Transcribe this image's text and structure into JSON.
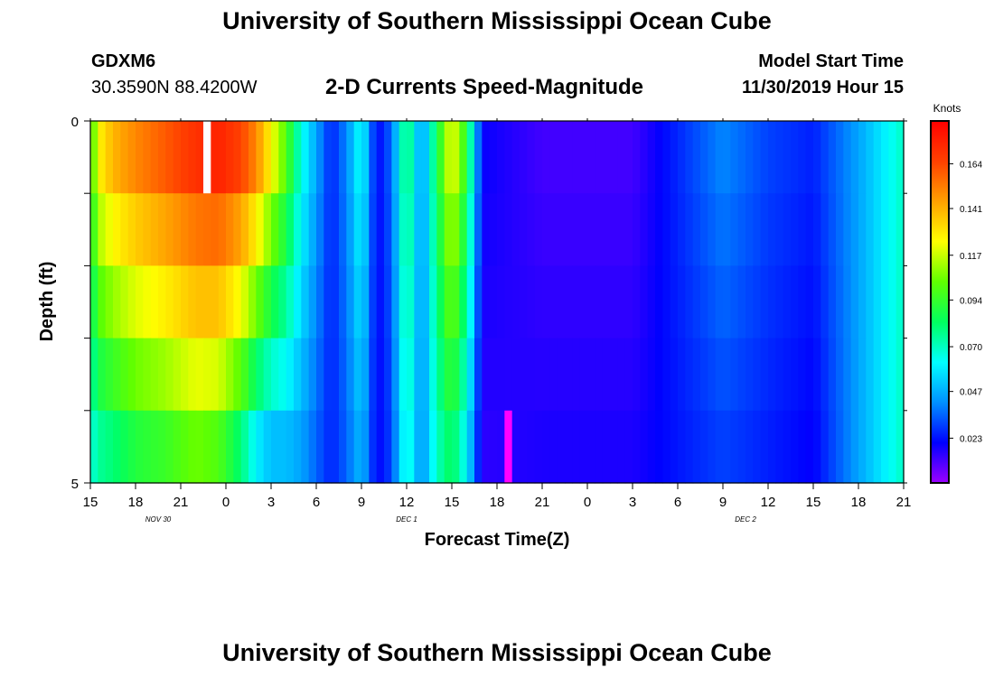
{
  "header": {
    "title": "University of Southern Mississippi Ocean Cube",
    "station_id": "GDXM6",
    "coordinates": "30.3590N 88.4200W",
    "subtitle": "2-D Currents Speed-Magnitude",
    "model_start_label": "Model Start Time",
    "model_start_value": "11/30/2019 Hour 15"
  },
  "footer": {
    "title": "University of Southern Mississippi Ocean Cube"
  },
  "chart_data": {
    "type": "heatmap",
    "title": "2-D Currents Speed-Magnitude",
    "xlabel": "Forecast Time(Z)",
    "ylabel": "Depth (ft)",
    "x_range_hours": [
      0,
      54
    ],
    "x_tick_labels": [
      "15",
      "18",
      "21",
      "0",
      "3",
      "6",
      "9",
      "12",
      "15",
      "18",
      "21",
      "0",
      "3",
      "6",
      "9",
      "12",
      "15",
      "18",
      "21"
    ],
    "date_labels": [
      {
        "text": "NOV 30",
        "hour": 4.5
      },
      {
        "text": "DEC 1",
        "hour": 21
      },
      {
        "text": "DEC 2",
        "hour": 43.5
      }
    ],
    "y_range": [
      0,
      5
    ],
    "y_tick_labels": [
      "0",
      "5"
    ],
    "depth_layers": 5,
    "colorbar": {
      "unit": "Knots",
      "min": 0.0,
      "max": 0.186,
      "tick_values": [
        "0.164",
        "0.141",
        "0.117",
        "0.094",
        "0.070",
        "0.047",
        "0.023"
      ],
      "colors": [
        "#9b00ff",
        "#0000ff",
        "#0090ff",
        "#00ffff",
        "#00ff60",
        "#60ff00",
        "#ffff00",
        "#ffa000",
        "#ff4000",
        "#ff0000"
      ]
    },
    "time_profile": [
      {
        "hour": 0,
        "speed": 0.09,
        "depth_drop": 0.025
      },
      {
        "hour": 0.5,
        "speed": 0.125,
        "depth_drop": 0.05
      },
      {
        "hour": 1.5,
        "speed": 0.14,
        "depth_drop": 0.06
      },
      {
        "hour": 3,
        "speed": 0.15,
        "depth_drop": 0.06
      },
      {
        "hour": 5,
        "speed": 0.16,
        "depth_drop": 0.065
      },
      {
        "hour": 7,
        "speed": 0.17,
        "depth_drop": 0.065
      },
      {
        "hour": 8.5,
        "speed": 0.175,
        "depth_drop": 0.075
      },
      {
        "hour": 10,
        "speed": 0.165,
        "depth_drop": 0.085
      },
      {
        "hour": 11,
        "speed": 0.15,
        "depth_drop": 0.09
      },
      {
        "hour": 12,
        "speed": 0.125,
        "depth_drop": 0.075
      },
      {
        "hour": 13,
        "speed": 0.1,
        "depth_drop": 0.05
      },
      {
        "hour": 14,
        "speed": 0.065,
        "depth_drop": 0.02
      },
      {
        "hour": 15,
        "speed": 0.045,
        "depth_drop": 0.01
      },
      {
        "hour": 16,
        "speed": 0.025,
        "depth_drop": 0.0
      },
      {
        "hour": 17,
        "speed": 0.04,
        "depth_drop": 0.005
      },
      {
        "hour": 18,
        "speed": 0.065,
        "depth_drop": 0.015
      },
      {
        "hour": 19,
        "speed": 0.02,
        "depth_drop": 0.0
      },
      {
        "hour": 20,
        "speed": 0.035,
        "depth_drop": 0.005
      },
      {
        "hour": 21,
        "speed": 0.085,
        "depth_drop": 0.015
      },
      {
        "hour": 22,
        "speed": 0.04,
        "depth_drop": 0.0
      },
      {
        "hour": 23,
        "speed": 0.085,
        "depth_drop": 0.015
      },
      {
        "hour": 24,
        "speed": 0.125,
        "depth_drop": 0.04
      },
      {
        "hour": 25,
        "speed": 0.09,
        "depth_drop": 0.03
      },
      {
        "hour": 26,
        "speed": 0.02,
        "depth_drop": 0.005
      },
      {
        "hour": 30,
        "speed": 0.012,
        "depth_drop": -0.005
      },
      {
        "hour": 36,
        "speed": 0.012,
        "depth_drop": -0.005
      },
      {
        "hour": 42,
        "speed": 0.04,
        "depth_drop": 0.01
      },
      {
        "hour": 45,
        "speed": 0.03,
        "depth_drop": 0.005
      },
      {
        "hour": 48,
        "speed": 0.025,
        "depth_drop": 0.005
      },
      {
        "hour": 51,
        "speed": 0.045,
        "depth_drop": 0.0
      },
      {
        "hour": 54,
        "speed": 0.07,
        "depth_drop": 0.0
      }
    ],
    "annotations": [
      {
        "type": "missing-data",
        "hour": 7.5,
        "layer": 1,
        "color": "#ffffff"
      },
      {
        "type": "peak",
        "hour": 27.5,
        "layer": 5,
        "color": "#ff00ff"
      }
    ]
  }
}
